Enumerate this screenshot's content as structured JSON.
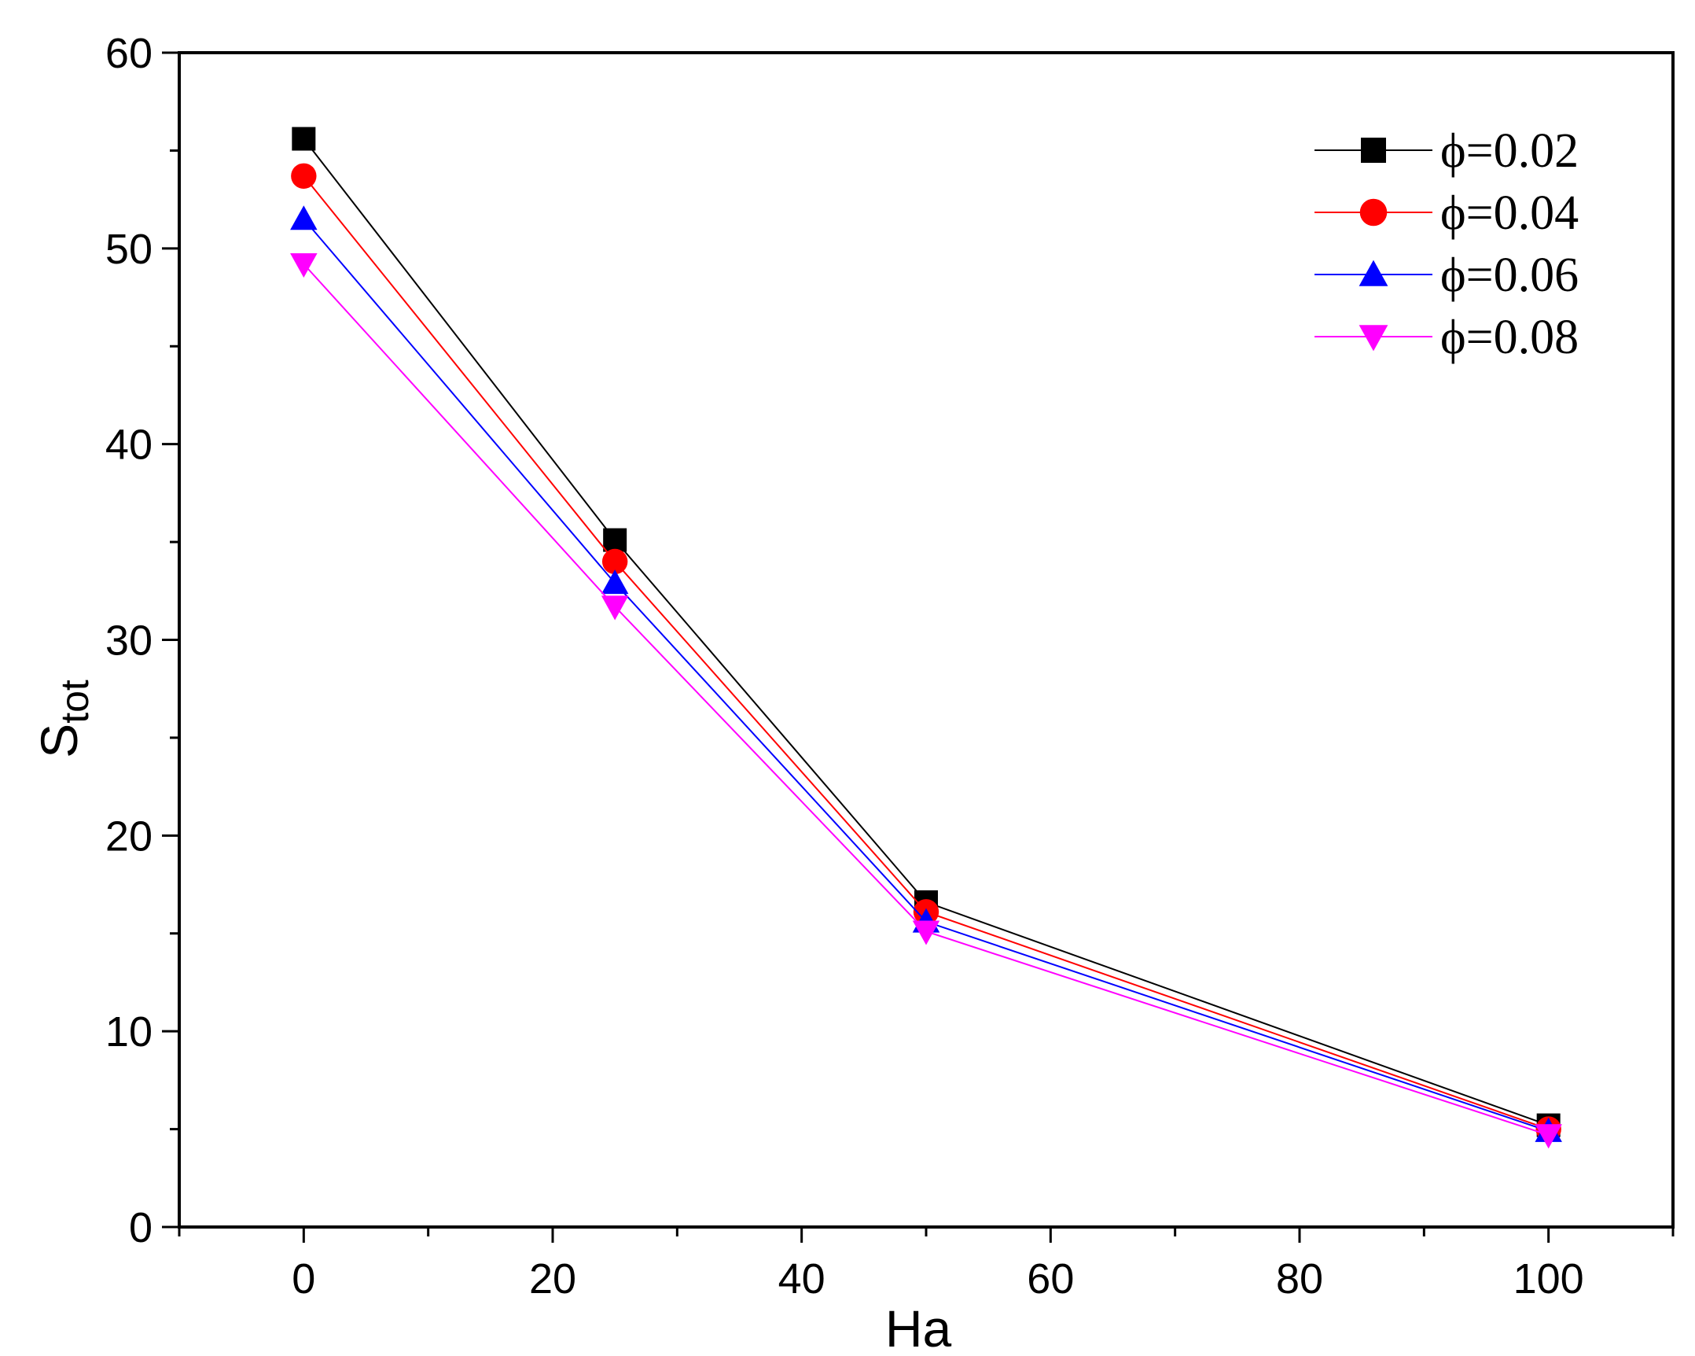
{
  "chart_data": {
    "type": "line",
    "title": "",
    "xlabel": "Ha",
    "ylabel_main": "S",
    "ylabel_sub": "tot",
    "xlim": [
      -10,
      110
    ],
    "ylim": [
      0,
      60
    ],
    "xticks": [
      0,
      20,
      40,
      60,
      80,
      100
    ],
    "xtick_labels": [
      "0",
      "20",
      "40",
      "60",
      "80",
      "100"
    ],
    "yticks": [
      0,
      10,
      20,
      30,
      40,
      50,
      60
    ],
    "ytick_labels": [
      "0",
      "10",
      "20",
      "30",
      "40",
      "50",
      "60"
    ],
    "x": [
      0,
      25,
      50,
      100
    ],
    "grid": false,
    "legend_position": "top-right",
    "series": [
      {
        "name": "ϕ=0.02",
        "color": "#000000",
        "marker": "square",
        "values": [
          55.6,
          35.1,
          16.6,
          5.2
        ]
      },
      {
        "name": "ϕ=0.04",
        "color": "#ff0000",
        "marker": "circle",
        "values": [
          53.7,
          34.0,
          16.1,
          5.0
        ]
      },
      {
        "name": "ϕ=0.06",
        "color": "#0000ff",
        "marker": "triangle-up",
        "values": [
          51.5,
          32.9,
          15.6,
          4.9
        ]
      },
      {
        "name": "ϕ=0.08",
        "color": "#ff00ff",
        "marker": "triangle-down",
        "values": [
          49.2,
          31.7,
          15.1,
          4.7
        ]
      }
    ]
  }
}
